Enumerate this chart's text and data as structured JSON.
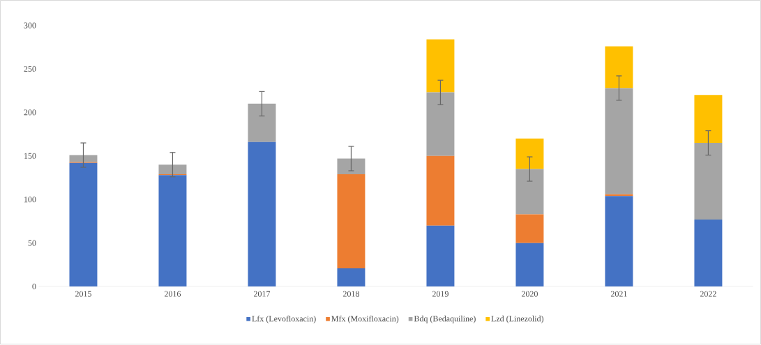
{
  "chart_data": {
    "type": "bar",
    "stacked": true,
    "categories": [
      "2015",
      "2016",
      "2017",
      "2018",
      "2019",
      "2020",
      "2021",
      "2022"
    ],
    "series": [
      {
        "name": "Lfx (Levofloxacin)",
        "color": "#4472c4",
        "values": [
          142,
          128,
          166,
          21,
          70,
          50,
          104,
          77
        ]
      },
      {
        "name": "Mfx (Moxifloxacin)",
        "color": "#ed7d31",
        "values": [
          1,
          1,
          0,
          108,
          80,
          33,
          2,
          0
        ]
      },
      {
        "name": "Bdq (Bedaquiline)",
        "color": "#a5a5a5",
        "values": [
          8,
          11,
          44,
          18,
          73,
          52,
          122,
          88
        ],
        "errors": [
          14,
          14,
          14,
          14,
          14,
          14,
          14,
          14
        ]
      },
      {
        "name": "Lzd (Linezolid)",
        "color": "#ffc000",
        "values": [
          0,
          0,
          0,
          0,
          61,
          35,
          48,
          55
        ]
      }
    ],
    "ylim": [
      0,
      300
    ],
    "yticks": [
      0,
      50,
      100,
      150,
      200,
      250,
      300
    ],
    "legend": "bottom"
  }
}
